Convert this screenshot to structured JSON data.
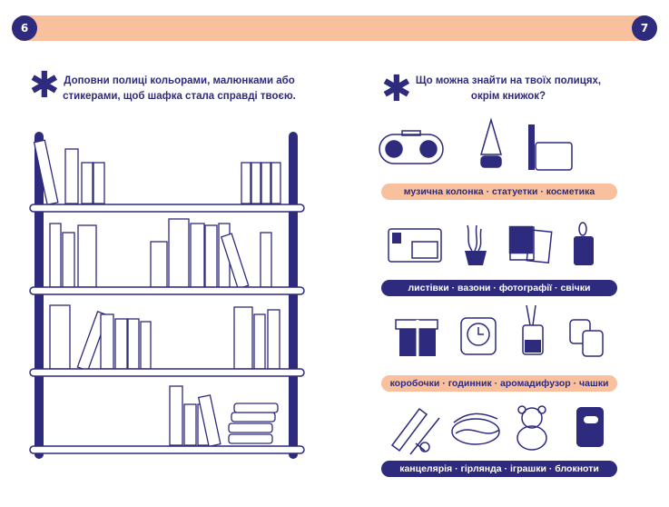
{
  "header": {
    "left_page_number": "6",
    "right_page_number": "7"
  },
  "left": {
    "instruction_line1": "Доповни полиці кольорами, малюнками або",
    "instruction_line2": "стикерами, щоб шафка стала справді твоєю."
  },
  "right": {
    "question_line1": "Що можна знайти на твоїх полицях,",
    "question_line2": "окрім книжок?",
    "labels": [
      "музична колонка · статуетки · косметика",
      "листівки · вазони · фотографії · свічки",
      "коробочки · годинник · аромадифузор · чашки",
      "канцелярія · гірлянда · іграшки · блокноти"
    ],
    "icons": [
      [
        "speaker-icon",
        "figurine-tree-icon",
        "cosmetics-icon"
      ],
      [
        "postcard-icon",
        "plant-pot-icon",
        "photos-icon",
        "candle-icon"
      ],
      [
        "gift-box-icon",
        "clock-icon",
        "aroma-diffuser-icon",
        "cups-icon"
      ],
      [
        "stationery-icon",
        "garland-icon",
        "teddy-bear-icon",
        "notebook-icon"
      ]
    ]
  },
  "colors": {
    "navy": "#2e2a7d",
    "peach": "#f8c09c"
  }
}
